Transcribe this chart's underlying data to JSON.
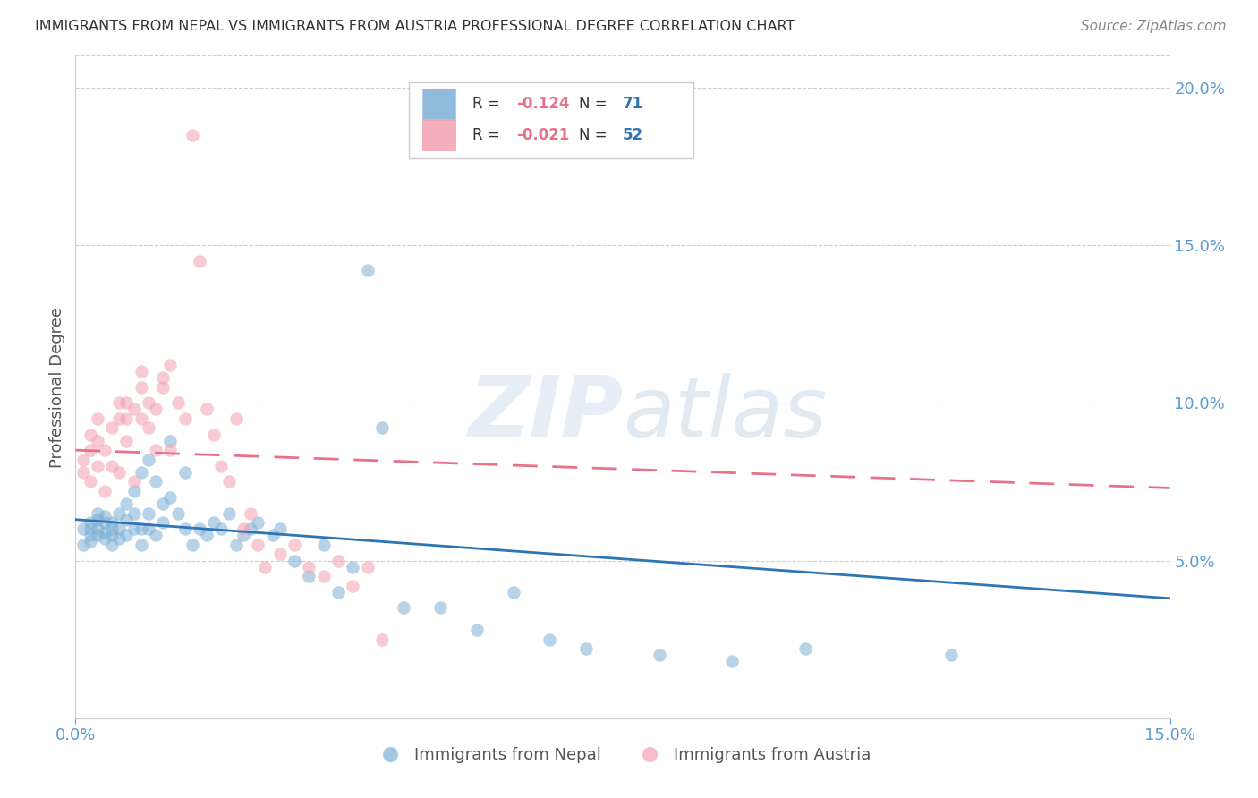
{
  "title": "IMMIGRANTS FROM NEPAL VS IMMIGRANTS FROM AUSTRIA PROFESSIONAL DEGREE CORRELATION CHART",
  "source": "Source: ZipAtlas.com",
  "ylabel": "Professional Degree",
  "x_min": 0.0,
  "x_max": 0.15,
  "y_min": 0.0,
  "y_max": 0.21,
  "right_yticks": [
    0.0,
    0.05,
    0.1,
    0.15,
    0.2
  ],
  "right_yticklabels": [
    "",
    "5.0%",
    "10.0%",
    "15.0%",
    "20.0%"
  ],
  "nepal_color": "#7EB0D5",
  "austria_color": "#F4A0B0",
  "nepal_R": -0.124,
  "nepal_N": 71,
  "austria_R": -0.021,
  "austria_N": 52,
  "legend_label_nepal": "Immigrants from Nepal",
  "legend_label_austria": "Immigrants from Austria",
  "watermark_zip": "ZIP",
  "watermark_atlas": "atlas",
  "nepal_scatter_x": [
    0.001,
    0.001,
    0.002,
    0.002,
    0.002,
    0.002,
    0.003,
    0.003,
    0.003,
    0.003,
    0.004,
    0.004,
    0.004,
    0.004,
    0.005,
    0.005,
    0.005,
    0.005,
    0.006,
    0.006,
    0.006,
    0.007,
    0.007,
    0.007,
    0.008,
    0.008,
    0.008,
    0.009,
    0.009,
    0.009,
    0.01,
    0.01,
    0.01,
    0.011,
    0.011,
    0.012,
    0.012,
    0.013,
    0.013,
    0.014,
    0.015,
    0.015,
    0.016,
    0.017,
    0.018,
    0.019,
    0.02,
    0.021,
    0.022,
    0.023,
    0.024,
    0.025,
    0.027,
    0.028,
    0.03,
    0.032,
    0.034,
    0.036,
    0.038,
    0.04,
    0.042,
    0.045,
    0.05,
    0.055,
    0.06,
    0.065,
    0.07,
    0.08,
    0.09,
    0.1,
    0.12
  ],
  "nepal_scatter_y": [
    0.06,
    0.055,
    0.062,
    0.058,
    0.056,
    0.06,
    0.065,
    0.058,
    0.06,
    0.063,
    0.057,
    0.062,
    0.059,
    0.064,
    0.06,
    0.055,
    0.058,
    0.062,
    0.065,
    0.06,
    0.057,
    0.068,
    0.063,
    0.058,
    0.072,
    0.06,
    0.065,
    0.078,
    0.055,
    0.06,
    0.082,
    0.065,
    0.06,
    0.075,
    0.058,
    0.068,
    0.062,
    0.088,
    0.07,
    0.065,
    0.06,
    0.078,
    0.055,
    0.06,
    0.058,
    0.062,
    0.06,
    0.065,
    0.055,
    0.058,
    0.06,
    0.062,
    0.058,
    0.06,
    0.05,
    0.045,
    0.055,
    0.04,
    0.048,
    0.142,
    0.092,
    0.035,
    0.035,
    0.028,
    0.04,
    0.025,
    0.022,
    0.02,
    0.018,
    0.022,
    0.02
  ],
  "austria_scatter_x": [
    0.001,
    0.001,
    0.002,
    0.002,
    0.002,
    0.003,
    0.003,
    0.003,
    0.004,
    0.004,
    0.005,
    0.005,
    0.006,
    0.006,
    0.006,
    0.007,
    0.007,
    0.007,
    0.008,
    0.008,
    0.009,
    0.009,
    0.009,
    0.01,
    0.01,
    0.011,
    0.011,
    0.012,
    0.012,
    0.013,
    0.013,
    0.014,
    0.015,
    0.016,
    0.017,
    0.018,
    0.019,
    0.02,
    0.021,
    0.022,
    0.023,
    0.024,
    0.025,
    0.026,
    0.028,
    0.03,
    0.032,
    0.034,
    0.036,
    0.038,
    0.04,
    0.042
  ],
  "austria_scatter_y": [
    0.078,
    0.082,
    0.075,
    0.09,
    0.085,
    0.08,
    0.095,
    0.088,
    0.072,
    0.085,
    0.092,
    0.08,
    0.095,
    0.078,
    0.1,
    0.088,
    0.095,
    0.1,
    0.075,
    0.098,
    0.11,
    0.105,
    0.095,
    0.1,
    0.092,
    0.098,
    0.085,
    0.108,
    0.105,
    0.085,
    0.112,
    0.1,
    0.095,
    0.185,
    0.145,
    0.098,
    0.09,
    0.08,
    0.075,
    0.095,
    0.06,
    0.065,
    0.055,
    0.048,
    0.052,
    0.055,
    0.048,
    0.045,
    0.05,
    0.042,
    0.048,
    0.025
  ],
  "nepal_trend_y_start": 0.063,
  "nepal_trend_y_end": 0.038,
  "austria_trend_y_start": 0.085,
  "austria_trend_y_end": 0.073,
  "bg_color": "#FFFFFF",
  "grid_color": "#CCCCCC",
  "title_color": "#333333",
  "tick_color": "#5B9BD5",
  "axis_label_color": "#555555",
  "trend_nepal_color": "#2E75B6",
  "trend_austria_color": "#E8718A"
}
